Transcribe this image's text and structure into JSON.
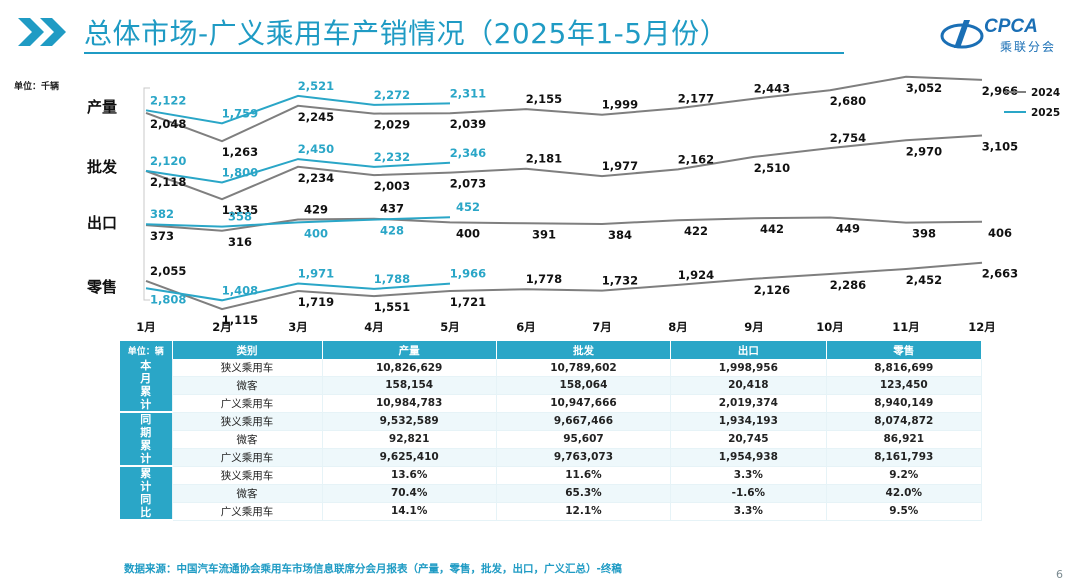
{
  "header": {
    "title": "总体市场-广义乘用车产销情况（2025年1-5月份）",
    "logo_text": "CPCA",
    "logo_sub": "乘联分会",
    "accent_color": "#1f9bc4"
  },
  "unit_label": "单位：千辆",
  "chart_data": {
    "type": "line",
    "categories": [
      "1月",
      "2月",
      "3月",
      "4月",
      "5月",
      "6月",
      "7月",
      "8月",
      "9月",
      "10月",
      "11月",
      "12月"
    ],
    "legend": [
      "2024",
      "2025"
    ],
    "legend_placement": "top-right",
    "series_colors": {
      "2024": "#7f7f7f",
      "2025": "#2aa6c7"
    },
    "panels": [
      {
        "label": "产量",
        "s2024": [
          2048,
          1263,
          2245,
          2029,
          2039,
          2155,
          1999,
          2177,
          2443,
          2680,
          3052,
          2966
        ],
        "s2025": [
          2122,
          1759,
          2521,
          2272,
          2311
        ],
        "label_2024_pos": [
          "below",
          "below",
          "below",
          "below",
          "below",
          "above",
          "above",
          "above",
          "above",
          "below",
          "below",
          "below"
        ],
        "label_2025_pos": [
          "above",
          "above",
          "above",
          "above",
          "above"
        ]
      },
      {
        "label": "批发",
        "s2024": [
          2118,
          1335,
          2234,
          2003,
          2073,
          2181,
          1977,
          2162,
          2510,
          2754,
          2970,
          3105
        ],
        "s2025": [
          2120,
          1800,
          2450,
          2232,
          2346
        ],
        "label_2024_pos": [
          "below",
          "below",
          "below",
          "below",
          "below",
          "above",
          "above",
          "above",
          "below",
          "above",
          "below",
          "below"
        ],
        "label_2025_pos": [
          "above",
          "above",
          "above",
          "above",
          "above"
        ]
      },
      {
        "label": "出口",
        "s2024": [
          373,
          316,
          429,
          437,
          400,
          391,
          384,
          422,
          442,
          449,
          398,
          406
        ],
        "s2025": [
          382,
          358,
          400,
          428,
          452
        ],
        "label_2024_pos": [
          "below",
          "below",
          "above",
          "above",
          "below",
          "below",
          "below",
          "below",
          "below",
          "below",
          "below",
          "below"
        ],
        "label_2025_pos": [
          "above",
          "above",
          "below",
          "below",
          "above"
        ]
      },
      {
        "label": "零售",
        "s2024": [
          2055,
          1115,
          1719,
          1551,
          1721,
          1778,
          1732,
          1924,
          2126,
          2286,
          2452,
          2663
        ],
        "s2025": [
          1808,
          1408,
          1971,
          1788,
          1966
        ],
        "label_2024_pos": [
          "above",
          "below",
          "below",
          "below",
          "below",
          "above",
          "above",
          "above",
          "below",
          "below",
          "below",
          "below"
        ],
        "label_2025_pos": [
          "below",
          "above",
          "above",
          "above",
          "above"
        ]
      }
    ]
  },
  "table": {
    "unit": "单位：辆",
    "headers": [
      "类别",
      "产量",
      "批发",
      "出口",
      "零售"
    ],
    "groups": [
      {
        "name": "本月累计",
        "rows": [
          [
            "狭义乘用车",
            "10,826,629",
            "10,789,602",
            "1,998,956",
            "8,816,699"
          ],
          [
            "微客",
            "158,154",
            "158,064",
            "20,418",
            "123,450"
          ],
          [
            "广义乘用车",
            "10,984,783",
            "10,947,666",
            "2,019,374",
            "8,940,149"
          ]
        ]
      },
      {
        "name": "同期累计",
        "rows": [
          [
            "狭义乘用车",
            "9,532,589",
            "9,667,466",
            "1,934,193",
            "8,074,872"
          ],
          [
            "微客",
            "92,821",
            "95,607",
            "20,745",
            "86,921"
          ],
          [
            "广义乘用车",
            "9,625,410",
            "9,763,073",
            "1,954,938",
            "8,161,793"
          ]
        ]
      },
      {
        "name": "累计同比",
        "rows": [
          [
            "狭义乘用车",
            "13.6%",
            "11.6%",
            "3.3%",
            "9.2%"
          ],
          [
            "微客",
            "70.4%",
            "65.3%",
            "-1.6%",
            "42.0%"
          ],
          [
            "广义乘用车",
            "14.1%",
            "12.1%",
            "3.3%",
            "9.5%"
          ]
        ]
      }
    ]
  },
  "source": "数据来源：中国汽车流通协会乘用车市场信息联席分会月报表（产量，零售，批发，出口，广义汇总）-终稿",
  "page_number": "6"
}
